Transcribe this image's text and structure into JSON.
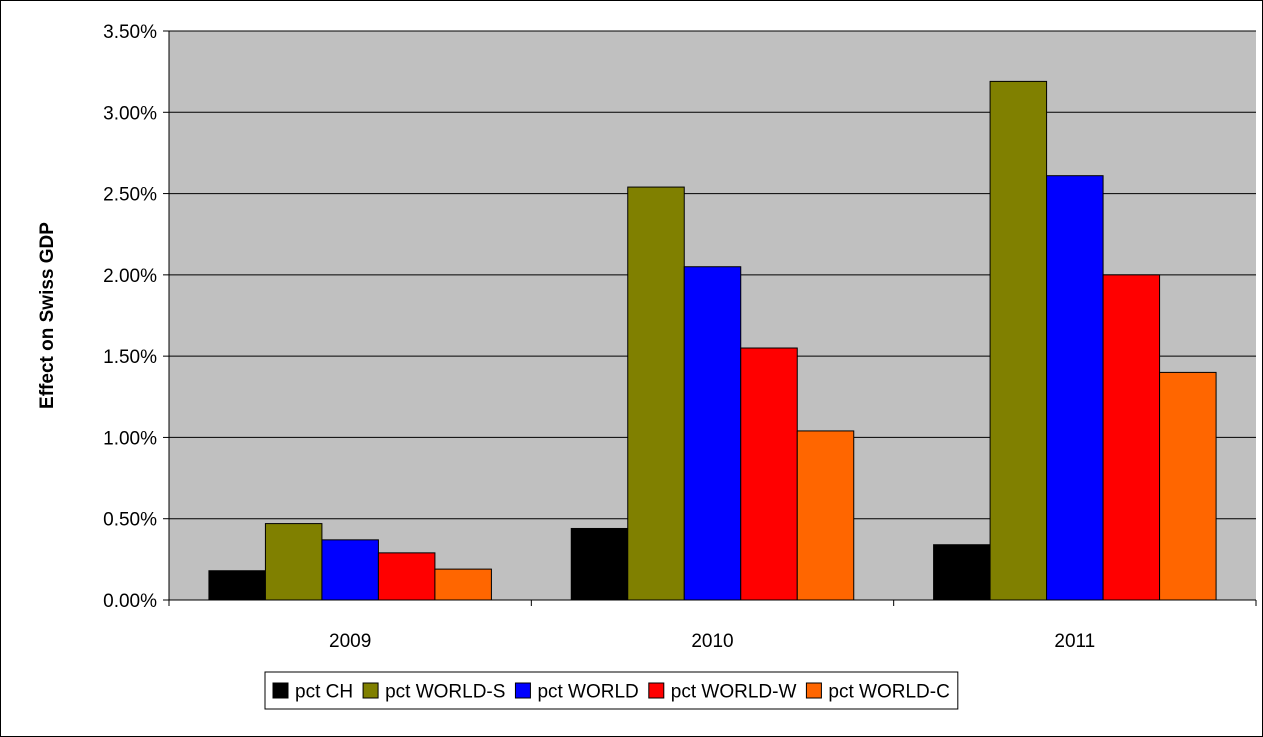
{
  "chart_data": {
    "type": "bar",
    "title": "",
    "xlabel": "",
    "ylabel": "Effect on Swiss GDP",
    "categories": [
      "2009",
      "2010",
      "2011"
    ],
    "ylim": [
      0,
      0.035
    ],
    "yticks": [
      0,
      0.005,
      0.01,
      0.015,
      0.02,
      0.025,
      0.03,
      0.035
    ],
    "ytick_labels": [
      "0.00%",
      "0.50%",
      "1.00%",
      "1.50%",
      "2.00%",
      "2.50%",
      "3.00%",
      "3.50%"
    ],
    "grid": true,
    "plot_background": "#c0c0c0",
    "legend_position": "bottom",
    "series": [
      {
        "name": "pct CH",
        "color": "#000000",
        "values": [
          0.0018,
          0.0044,
          0.0034
        ]
      },
      {
        "name": "pct WORLD-S",
        "color": "#808000",
        "values": [
          0.0047,
          0.0254,
          0.0319
        ]
      },
      {
        "name": "pct WORLD",
        "color": "#0000ff",
        "values": [
          0.0037,
          0.0205,
          0.0261
        ]
      },
      {
        "name": "pct WORLD-W",
        "color": "#ff0000",
        "values": [
          0.0029,
          0.0155,
          0.02
        ]
      },
      {
        "name": "pct WORLD-C",
        "color": "#ff6600",
        "values": [
          0.0019,
          0.0104,
          0.014
        ]
      }
    ]
  }
}
